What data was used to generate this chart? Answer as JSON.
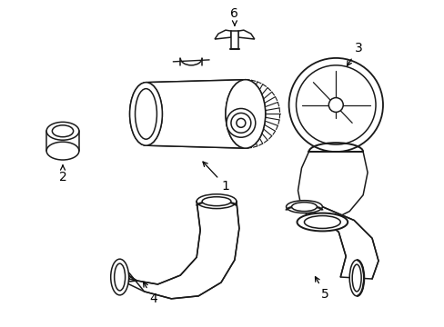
{
  "background_color": "#ffffff",
  "line_color": "#1a1a1a",
  "line_width": 1.1,
  "label_fontsize": 10,
  "label_color": "#000000",
  "figsize": [
    4.89,
    3.6
  ],
  "dpi": 100
}
